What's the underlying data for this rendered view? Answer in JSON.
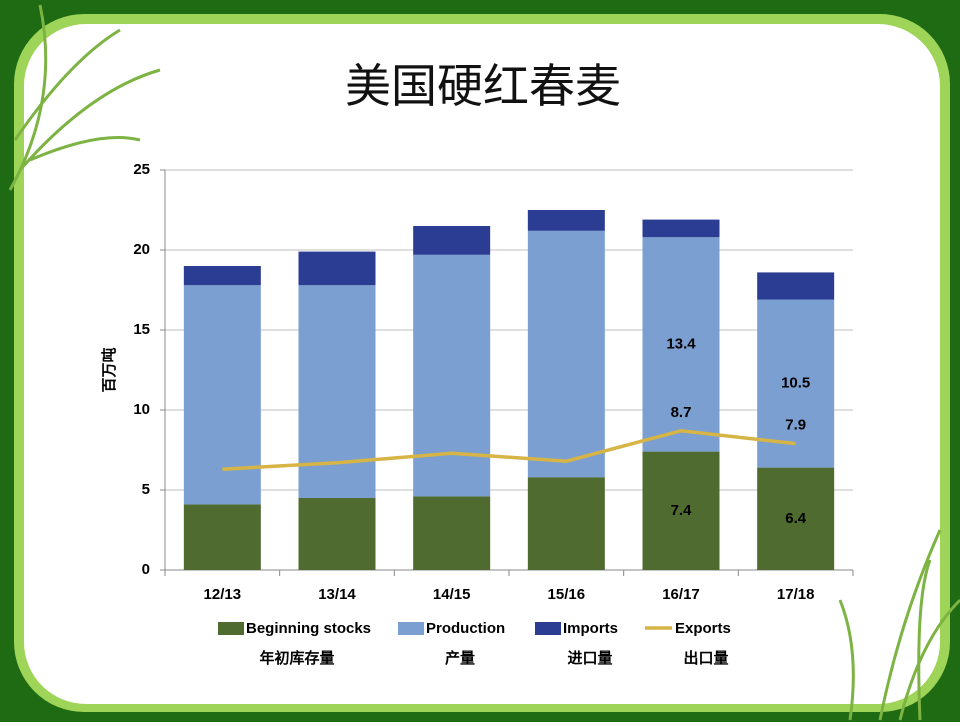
{
  "chart_data": {
    "type": "stacked_bar_line",
    "title": "美国硬红春麦",
    "y_label": "百万吨",
    "categories": [
      "12/13",
      "13/14",
      "14/15",
      "15/16",
      "16/17",
      "17/18"
    ],
    "series": [
      {
        "name": "Beginning stocks",
        "label_zh": "年初库存量",
        "color": "#4f6b2f",
        "kind": "bar",
        "values": [
          4.1,
          4.5,
          4.6,
          5.8,
          7.4,
          6.4
        ],
        "value_labels": [
          null,
          null,
          null,
          null,
          "7.4",
          "6.4"
        ]
      },
      {
        "name": "Production",
        "label_zh": "产量",
        "color": "#7b9fd0",
        "kind": "bar",
        "values": [
          13.7,
          13.3,
          15.1,
          15.4,
          13.4,
          10.5
        ],
        "value_labels": [
          null,
          null,
          null,
          null,
          "13.4",
          "10.5"
        ]
      },
      {
        "name": "Imports",
        "label_zh": "进口量",
        "color": "#2b3c93",
        "kind": "bar",
        "values": [
          1.2,
          2.1,
          1.8,
          1.3,
          1.1,
          1.7
        ]
      },
      {
        "name": "Exports",
        "label_zh": "出口量",
        "color": "#d6b445",
        "kind": "line",
        "values": [
          6.3,
          6.7,
          7.3,
          6.8,
          8.7,
          7.9
        ],
        "value_labels": [
          null,
          null,
          null,
          null,
          "8.7",
          "7.9"
        ]
      }
    ],
    "ylim": [
      0,
      25
    ],
    "yticks": [
      0,
      5,
      10,
      15,
      20,
      25
    ],
    "grid": true
  }
}
